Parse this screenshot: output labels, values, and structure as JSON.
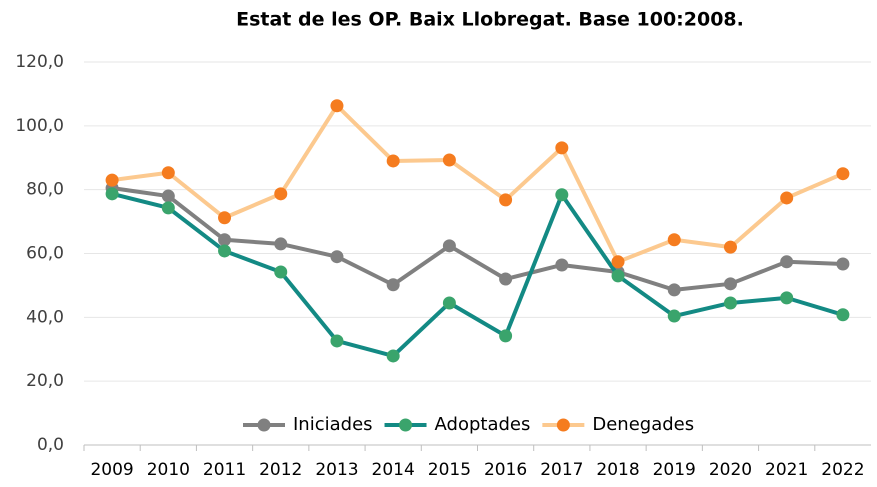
{
  "chart_data": {
    "type": "line",
    "title": "Estat de les OP. Baix Llobregat. Base 100:2008.",
    "categories": [
      "2009",
      "2010",
      "2011",
      "2012",
      "2013",
      "2014",
      "2015",
      "2016",
      "2017",
      "2018",
      "2019",
      "2020",
      "2021",
      "2022"
    ],
    "series": [
      {
        "name": "Iniciades",
        "color": "#808080",
        "values": [
          80.5,
          78,
          64.3,
          63,
          59,
          50.2,
          62.4,
          52,
          56.4,
          54.2,
          48.6,
          50.5,
          57.4,
          56.7
        ]
      },
      {
        "name": "Adoptades",
        "color": "#138a84",
        "marker_color": "#3aa46c",
        "values": [
          78.7,
          74.3,
          60.8,
          54.2,
          32.6,
          27.9,
          44.5,
          34.2,
          78.4,
          53,
          40.4,
          44.5,
          46.1,
          40.8
        ]
      },
      {
        "name": "Denegades",
        "color": "#fcc98f",
        "marker_color": "#f57c1f",
        "values": [
          83,
          85.3,
          71.2,
          78.7,
          106.3,
          89,
          89.3,
          76.8,
          93.1,
          57.4,
          64.3,
          62,
          77.4,
          85
        ]
      }
    ],
    "ylim": [
      0,
      120
    ],
    "yticks": [
      {
        "value": 0,
        "label": "0,0"
      },
      {
        "value": 20,
        "label": "20,0"
      },
      {
        "value": 40,
        "label": "40,0"
      },
      {
        "value": 60,
        "label": "60,0"
      },
      {
        "value": 80,
        "label": "80,0"
      },
      {
        "value": 100,
        "label": "100,0"
      },
      {
        "value": 120,
        "label": "120,0"
      }
    ],
    "grid": true,
    "legend": "bottom"
  }
}
